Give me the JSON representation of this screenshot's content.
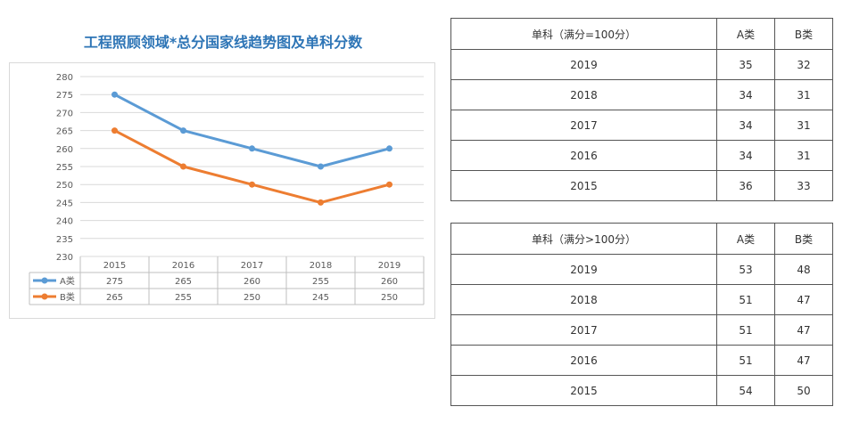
{
  "chart_data": {
    "type": "line",
    "title": "工程照顾领域*总分国家线趋势图及单科分数",
    "x": [
      "2015",
      "2016",
      "2017",
      "2018",
      "2019"
    ],
    "series": [
      {
        "name": "A类",
        "values": [
          275,
          265,
          260,
          255,
          260
        ],
        "color": "#5b9bd5"
      },
      {
        "name": "B类",
        "values": [
          265,
          255,
          250,
          245,
          250
        ],
        "color": "#ed7d31"
      }
    ],
    "ylim": [
      230,
      280
    ],
    "yticks": [
      230,
      235,
      240,
      245,
      250,
      255,
      260,
      265,
      270,
      275,
      280
    ],
    "grid": true,
    "legend": "data-table-below"
  },
  "table1": {
    "header": {
      "label": "单科（满分=100分）",
      "a": "A类",
      "b": "B类"
    },
    "rows": [
      {
        "year": "2019",
        "a": "35",
        "b": "32"
      },
      {
        "year": "2018",
        "a": "34",
        "b": "31"
      },
      {
        "year": "2017",
        "a": "34",
        "b": "31"
      },
      {
        "year": "2016",
        "a": "34",
        "b": "31"
      },
      {
        "year": "2015",
        "a": "36",
        "b": "33"
      }
    ]
  },
  "table2": {
    "header": {
      "label": "单科（满分>100分）",
      "a": "A类",
      "b": "B类"
    },
    "rows": [
      {
        "year": "2019",
        "a": "53",
        "b": "48"
      },
      {
        "year": "2018",
        "a": "51",
        "b": "47"
      },
      {
        "year": "2017",
        "a": "51",
        "b": "47"
      },
      {
        "year": "2016",
        "a": "51",
        "b": "47"
      },
      {
        "year": "2015",
        "a": "54",
        "b": "50"
      }
    ]
  }
}
